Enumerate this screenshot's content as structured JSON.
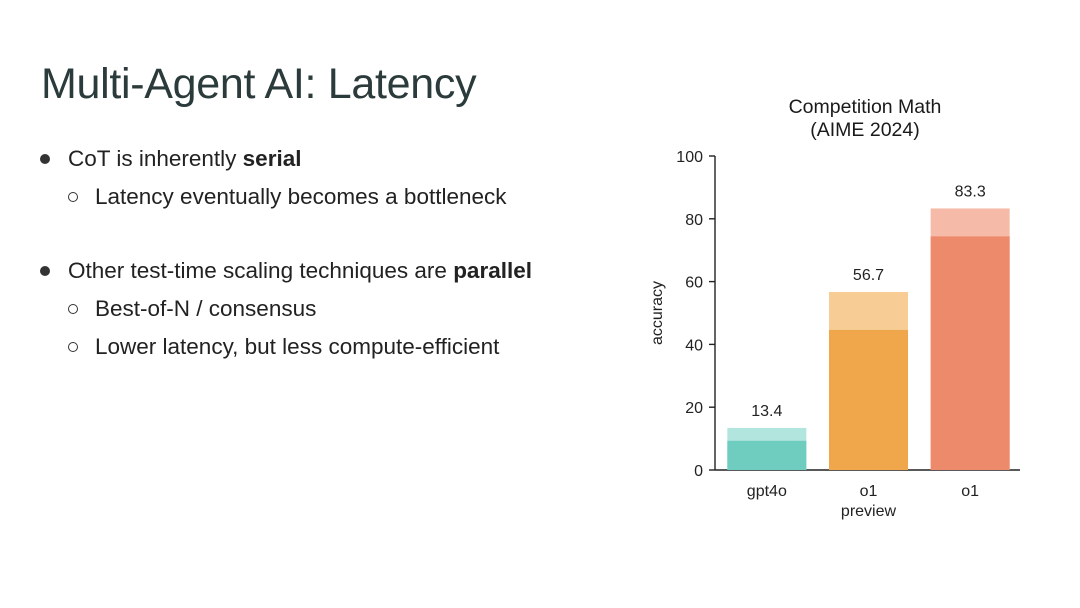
{
  "slide": {
    "title": "Multi-Agent AI: Latency",
    "bullets": [
      {
        "prefix": "CoT is inherently ",
        "bold": "serial",
        "sub": [
          "Latency eventually becomes a bottleneck"
        ]
      },
      {
        "prefix": "Other test-time scaling techniques are ",
        "bold": "parallel",
        "sub": [
          "Best-of-N / consensus",
          "Lower latency, but less compute-efficient"
        ]
      }
    ]
  },
  "chart_data": {
    "type": "bar",
    "title": [
      "Competition Math",
      "(AIME 2024)"
    ],
    "ylabel": "accuracy",
    "xlabel": "",
    "ylim": [
      0,
      100
    ],
    "yticks": [
      0,
      20,
      40,
      60,
      80,
      100
    ],
    "categories": [
      {
        "lines": [
          "gpt4o"
        ]
      },
      {
        "lines": [
          "o1",
          "preview"
        ]
      },
      {
        "lines": [
          "o1"
        ]
      }
    ],
    "values": [
      13.4,
      56.7,
      83.3
    ],
    "inner_values": [
      9.3,
      44.6,
      74.4
    ],
    "data_labels": [
      "13.4",
      "56.7",
      "83.3"
    ],
    "colors": {
      "solid": [
        "#6fcdc0",
        "#f0a64a",
        "#ee8a6c"
      ],
      "light": [
        "#b2e5dd",
        "#f7cd95",
        "#f5bba8"
      ]
    },
    "grid": false
  }
}
